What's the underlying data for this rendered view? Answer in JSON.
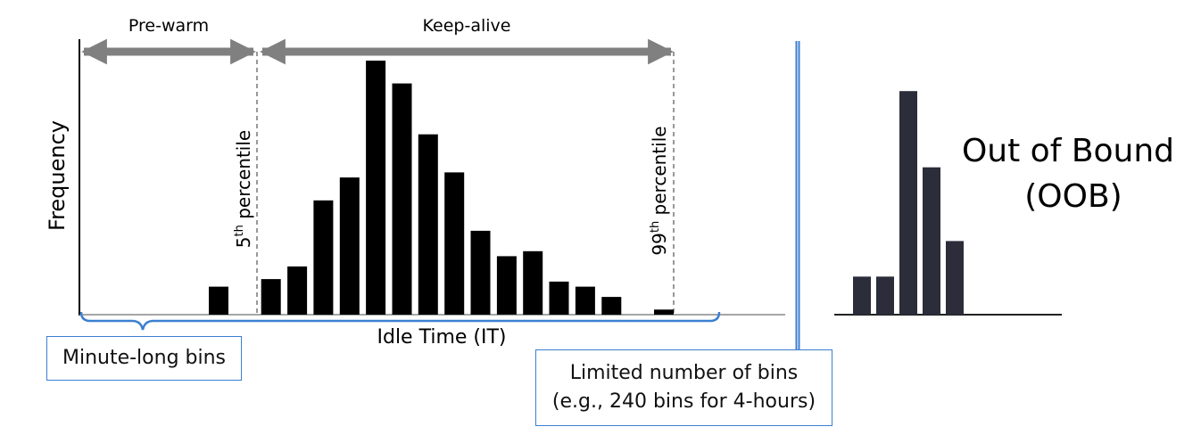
{
  "diagram": {
    "arrows": {
      "prewarm_label": "Pre-warm",
      "keepalive_label": "Keep-alive"
    },
    "y_axis_label": "Frequency",
    "x_axis_label": "Idle Time (IT)",
    "percentile_low": {
      "number": "5",
      "suffix": "th",
      "word": " percentile"
    },
    "percentile_high": {
      "number": "99",
      "suffix": "th",
      "word": " percentile"
    },
    "oob": {
      "line1": "Out of Bound",
      "line2": "(OOB)"
    },
    "minute_box": "Minute-long bins",
    "limited_box": {
      "line1": "Limited number of bins",
      "line2": "(e.g., 240 bins for 4-hours)"
    },
    "colors": {
      "bars": "#000000",
      "oob_bars": "#2b2d3a",
      "arrows": "#808080",
      "accent": "#3b7fd1"
    }
  },
  "chart_data": {
    "type": "bar",
    "main_histogram": {
      "values": [
        0.11,
        0,
        0.14,
        0.19,
        0.45,
        0.54,
        1.0,
        0.91,
        0.71,
        0.56,
        0.33,
        0.23,
        0.25,
        0.13,
        0.11,
        0.07,
        0,
        0.02
      ]
    },
    "oob_histogram": {
      "values": [
        0.15,
        0.15,
        0.88,
        0.58,
        0.29
      ]
    }
  }
}
